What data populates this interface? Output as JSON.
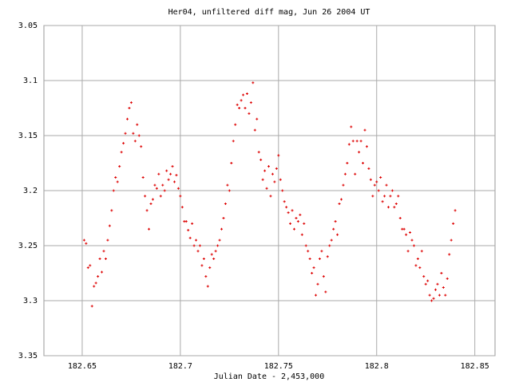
{
  "chart_data": {
    "type": "scatter",
    "title": "Her04, unfiltered diff mag, Jun 26 2004 UT",
    "x_label": "Julian Date - 2,453,000",
    "xlim": [
      182.6305,
      182.8603
    ],
    "xticks": [
      182.65,
      182.7,
      182.75,
      182.8,
      182.85
    ],
    "ylim": [
      3.05,
      3.35
    ],
    "y_inverted": true,
    "yticks": [
      3.05,
      3.1,
      3.15,
      3.2,
      3.25,
      3.3,
      3.35
    ],
    "grid": true,
    "series": [
      {
        "color": "#dd0000",
        "x": [
          182.651,
          182.652,
          182.653,
          182.654,
          182.655,
          182.656,
          182.657,
          182.658,
          182.659,
          182.66,
          182.661,
          182.662,
          182.663,
          182.664,
          182.665,
          182.666,
          182.667,
          182.668,
          182.669,
          182.67,
          182.671,
          182.672,
          182.673,
          182.674,
          182.675,
          182.676,
          182.677,
          182.678,
          182.679,
          182.68,
          182.681,
          182.682,
          182.683,
          182.684,
          182.685,
          182.686,
          182.687,
          182.688,
          182.689,
          182.69,
          182.691,
          182.692,
          182.693,
          182.694,
          182.695,
          182.696,
          182.697,
          182.698,
          182.699,
          182.7,
          182.701,
          182.702,
          182.703,
          182.704,
          182.705,
          182.706,
          182.707,
          182.708,
          182.709,
          182.71,
          182.711,
          182.712,
          182.713,
          182.714,
          182.715,
          182.716,
          182.717,
          182.718,
          182.719,
          182.72,
          182.721,
          182.722,
          182.723,
          182.724,
          182.725,
          182.726,
          182.727,
          182.728,
          182.729,
          182.73,
          182.731,
          182.732,
          182.733,
          182.734,
          182.735,
          182.736,
          182.737,
          182.738,
          182.739,
          182.74,
          182.741,
          182.742,
          182.743,
          182.744,
          182.745,
          182.746,
          182.747,
          182.748,
          182.749,
          182.75,
          182.751,
          182.752,
          182.753,
          182.754,
          182.755,
          182.756,
          182.757,
          182.758,
          182.759,
          182.76,
          182.761,
          182.762,
          182.763,
          182.764,
          182.765,
          182.766,
          182.767,
          182.768,
          182.769,
          182.77,
          182.771,
          182.772,
          182.773,
          182.774,
          182.775,
          182.776,
          182.777,
          182.778,
          182.779,
          182.78,
          182.781,
          182.782,
          182.783,
          182.784,
          182.785,
          182.786,
          182.787,
          182.788,
          182.789,
          182.79,
          182.791,
          182.792,
          182.793,
          182.794,
          182.795,
          182.796,
          182.797,
          182.798,
          182.799,
          182.8,
          182.801,
          182.802,
          182.803,
          182.804,
          182.805,
          182.806,
          182.807,
          182.808,
          182.809,
          182.81,
          182.811,
          182.812,
          182.813,
          182.814,
          182.815,
          182.816,
          182.817,
          182.818,
          182.819,
          182.82,
          182.821,
          182.822,
          182.823,
          182.824,
          182.825,
          182.826,
          182.827,
          182.828,
          182.829,
          182.83,
          182.831,
          182.832,
          182.833,
          182.834,
          182.835,
          182.836,
          182.837,
          182.838,
          182.839,
          182.84
        ],
        "values": [
          3.245,
          3.248,
          3.27,
          3.268,
          3.305,
          3.287,
          3.284,
          3.278,
          3.262,
          3.274,
          3.255,
          3.262,
          3.245,
          3.232,
          3.218,
          3.2,
          3.188,
          3.192,
          3.178,
          3.165,
          3.157,
          3.148,
          3.135,
          3.125,
          3.12,
          3.148,
          3.155,
          3.14,
          3.15,
          3.16,
          3.188,
          3.205,
          3.218,
          3.235,
          3.212,
          3.208,
          3.195,
          3.198,
          3.185,
          3.205,
          3.195,
          3.2,
          3.182,
          3.19,
          3.185,
          3.178,
          3.192,
          3.186,
          3.198,
          3.205,
          3.215,
          3.228,
          3.228,
          3.236,
          3.243,
          3.23,
          3.25,
          3.245,
          3.255,
          3.25,
          3.268,
          3.262,
          3.278,
          3.287,
          3.27,
          3.258,
          3.262,
          3.255,
          3.25,
          3.245,
          3.235,
          3.225,
          3.212,
          3.195,
          3.2,
          3.175,
          3.155,
          3.14,
          3.122,
          3.125,
          3.118,
          3.113,
          3.125,
          3.112,
          3.13,
          3.12,
          3.102,
          3.145,
          3.135,
          3.165,
          3.172,
          3.19,
          3.182,
          3.198,
          3.178,
          3.205,
          3.185,
          3.192,
          3.18,
          3.168,
          3.19,
          3.2,
          3.21,
          3.215,
          3.22,
          3.23,
          3.218,
          3.235,
          3.225,
          3.228,
          3.222,
          3.24,
          3.23,
          3.25,
          3.255,
          3.262,
          3.275,
          3.27,
          3.295,
          3.285,
          3.262,
          3.255,
          3.278,
          3.292,
          3.26,
          3.25,
          3.245,
          3.235,
          3.228,
          3.24,
          3.212,
          3.208,
          3.195,
          3.185,
          3.175,
          3.158,
          3.142,
          3.155,
          3.185,
          3.155,
          3.165,
          3.155,
          3.175,
          3.145,
          3.16,
          3.18,
          3.19,
          3.205,
          3.195,
          3.192,
          3.2,
          3.188,
          3.21,
          3.205,
          3.195,
          3.215,
          3.205,
          3.2,
          3.215,
          3.212,
          3.205,
          3.225,
          3.235,
          3.235,
          3.24,
          3.255,
          3.238,
          3.245,
          3.25,
          3.268,
          3.262,
          3.27,
          3.255,
          3.278,
          3.285,
          3.282,
          3.295,
          3.3,
          3.298,
          3.29,
          3.285,
          3.295,
          3.275,
          3.288,
          3.295,
          3.28,
          3.258,
          3.245,
          3.23,
          3.218
        ]
      }
    ]
  }
}
